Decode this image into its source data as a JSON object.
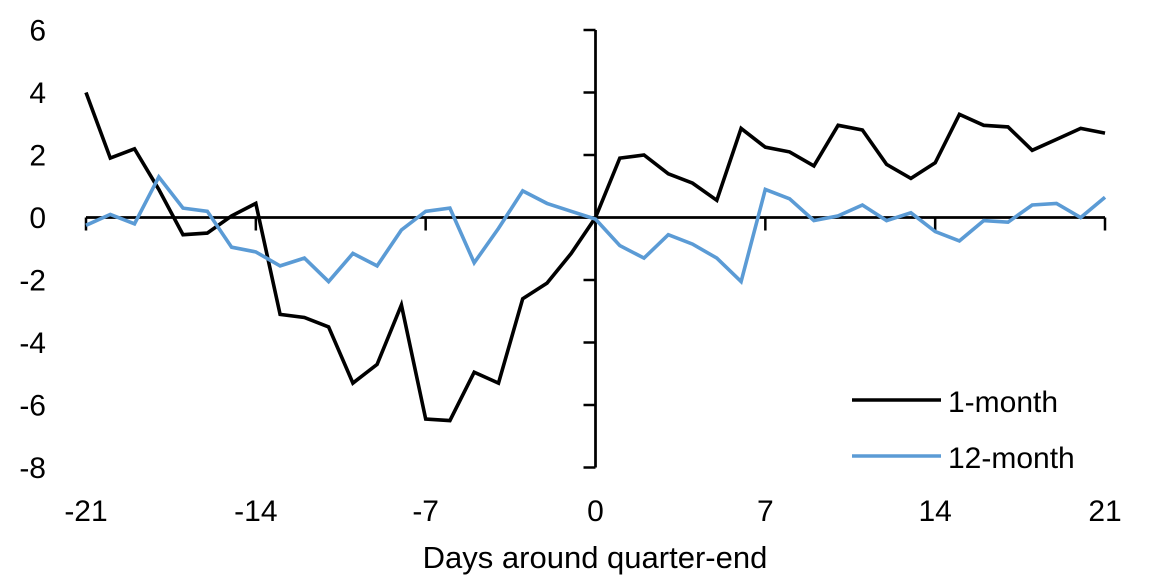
{
  "chart_data": {
    "type": "line",
    "title": "",
    "xlabel": "Days around quarter-end",
    "ylabel": "",
    "xlim": [
      -21,
      21
    ],
    "ylim": [
      -8,
      6
    ],
    "x_ticks": [
      -21,
      -14,
      -7,
      0,
      7,
      14,
      21
    ],
    "y_ticks": [
      6,
      4,
      2,
      0,
      -2,
      -4,
      -6,
      -8
    ],
    "grid": false,
    "legend_position": "lower-right",
    "axis_color": "#000000",
    "x": [
      -21,
      -20,
      -19,
      -18,
      -17,
      -16,
      -15,
      -14,
      -13,
      -12,
      -11,
      -10,
      -9,
      -8,
      -7,
      -6,
      -5,
      -4,
      -3,
      -2,
      -1,
      0,
      1,
      2,
      3,
      4,
      5,
      6,
      7,
      8,
      9,
      10,
      11,
      12,
      13,
      14,
      15,
      16,
      17,
      18,
      19,
      20,
      21
    ],
    "series": [
      {
        "name": "1-month",
        "color": "#000000",
        "values": [
          4.0,
          1.9,
          2.2,
          0.9,
          -0.55,
          -0.5,
          0.05,
          0.45,
          -3.1,
          -3.2,
          -3.5,
          -5.3,
          -4.7,
          -2.8,
          -6.45,
          -6.5,
          -4.95,
          -5.3,
          -2.6,
          -2.1,
          -1.15,
          0.0,
          1.9,
          2.0,
          1.4,
          1.1,
          0.55,
          2.85,
          2.25,
          2.1,
          1.65,
          2.95,
          2.8,
          1.7,
          1.25,
          1.75,
          3.3,
          2.95,
          2.9,
          2.15,
          2.5,
          2.85,
          2.7
        ]
      },
      {
        "name": "12-month",
        "color": "#5B9BD5",
        "values": [
          -0.25,
          0.1,
          -0.2,
          1.3,
          0.3,
          0.2,
          -0.95,
          -1.1,
          -1.55,
          -1.3,
          -2.05,
          -1.15,
          -1.55,
          -0.4,
          0.2,
          0.3,
          -1.45,
          -0.35,
          0.85,
          0.45,
          0.2,
          -0.05,
          -0.9,
          -1.3,
          -0.55,
          -0.85,
          -1.3,
          -2.05,
          0.9,
          0.6,
          -0.1,
          0.05,
          0.4,
          -0.1,
          0.15,
          -0.45,
          -0.75,
          -0.1,
          -0.15,
          0.4,
          0.45,
          0.0,
          0.65
        ]
      }
    ]
  }
}
